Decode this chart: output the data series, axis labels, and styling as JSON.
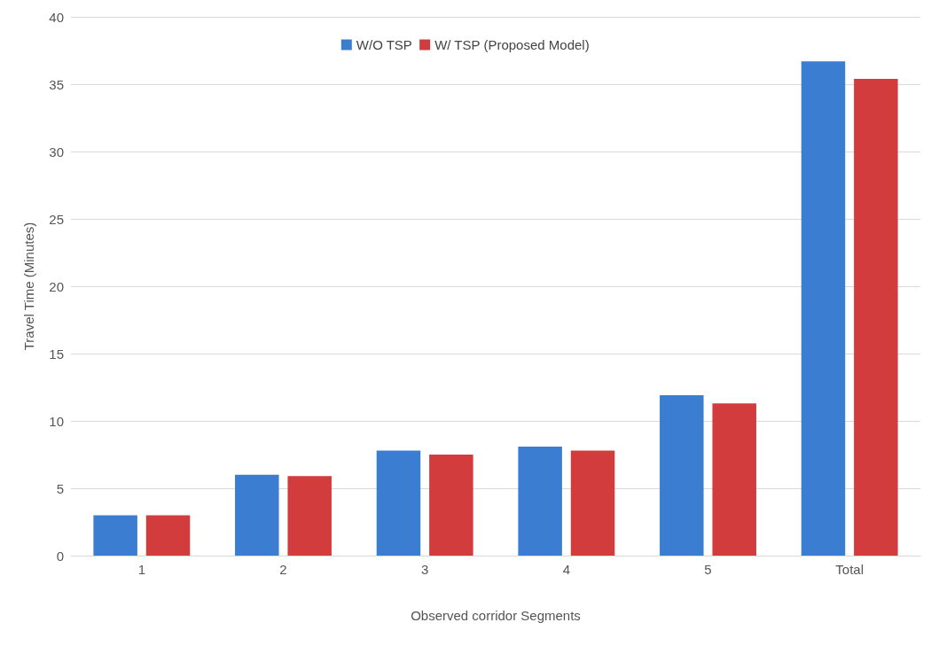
{
  "chart_data": {
    "type": "bar",
    "xlabel": "Observed corridor Segments",
    "ylabel": "Travel Time (Minutes)",
    "categories": [
      "1",
      "2",
      "3",
      "4",
      "5",
      "Total"
    ],
    "series": [
      {
        "name": "W/O TSP",
        "color": "#3b7dd0",
        "values": [
          3.0,
          6.0,
          7.8,
          8.1,
          11.9,
          36.7
        ]
      },
      {
        "name": "W/ TSP (Proposed Model)",
        "color": "#d23c3c",
        "values": [
          3.0,
          5.9,
          7.5,
          7.8,
          11.3,
          35.4
        ]
      }
    ],
    "ylim": [
      0,
      40
    ],
    "yticks": [
      0,
      5,
      10,
      15,
      20,
      25,
      30,
      35,
      40
    ],
    "grid": "y",
    "legend": "top"
  }
}
